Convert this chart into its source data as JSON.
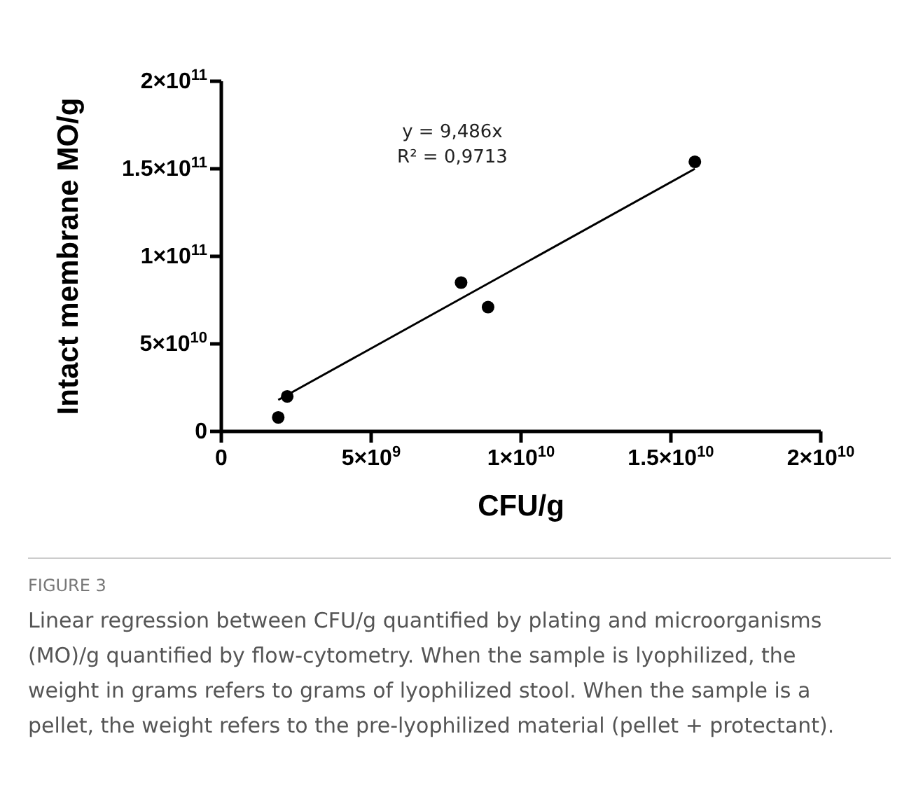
{
  "chart_data": {
    "type": "scatter",
    "xlabel": "CFU/g",
    "ylabel": "Intact membrane MO/g",
    "xlim": [
      0,
      20000000000.0
    ],
    "xticks": [
      0,
      {
        "value": 5000000000.0,
        "label": "5×10$^{9}$"
      },
      {
        "value": 10000000000.0,
        "label": "1×10$^{10}$"
      },
      {
        "value": 15000000000.0,
        "label": "1.5×10$^{10}$"
      },
      {
        "value": 20000000000.0,
        "label": "2×10$^{10}$"
      }
    ],
    "ylim": [
      0,
      200000000000.0
    ],
    "yticks": [
      0,
      {
        "value": 50000000000.0,
        "label": "5×10$^{10}$"
      },
      {
        "value": 100000000000.0,
        "label": "1×10$^{11}$"
      },
      {
        "value": 150000000000.0,
        "label": "1.5×10$^{11}$"
      },
      {
        "value": 200000000000.0,
        "label": "2×10$^{11}$"
      }
    ],
    "grid": false,
    "series": [
      {
        "color": "#000000",
        "marker": "circle",
        "x": [
          1900000000.0,
          2200000000.0,
          8000000000.0,
          8900000000.0,
          15800000000.0
        ],
        "values": [
          8000000000.0,
          20000000000.0,
          85000000000.0,
          71000000000.0,
          154000000000.0
        ]
      },
      {
        "type": "line",
        "color": "#000000",
        "marker": "none",
        "line_style": "solid",
        "x": [
          1900000000.0,
          15800000000.0
        ],
        "values": [
          18000000000.0,
          150000000000.0
        ]
      }
    ],
    "annotations": [
      "y = 9,486x",
      "R² = 0,9713",
      "FIGURE 3",
      "Linear regression between CFU/g quantified by plating and microorganisms (MO)/g quantified by flow-cytometry. When the sample is lyophilized, the weight in grams refers to grams of lyophilized stool. When the sample is a pellet, the weight refers to the pre-lyophilized material (pellet + protectant)."
    ]
  }
}
